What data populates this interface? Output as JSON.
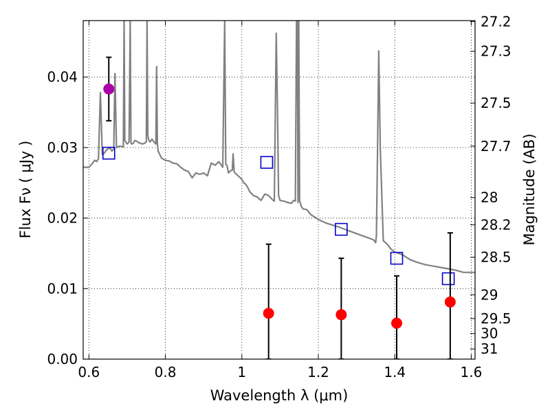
{
  "chart_data": {
    "type": "line",
    "xlabel": "Wavelength  λ (μm)",
    "ylabel": "Flux  Fν  ( μJy )",
    "y2label": "Magnitude (AB)",
    "xlim": [
      0.585,
      1.61
    ],
    "ylim": [
      0.0,
      0.048
    ],
    "grid": true,
    "x_ticks": [
      0.6,
      0.8,
      1.0,
      1.2,
      1.4,
      1.6
    ],
    "x_tick_labels": [
      "0.6",
      "0.8",
      "1",
      "1.2",
      "1.4",
      "1.6"
    ],
    "y_ticks": [
      0.0,
      0.01,
      0.02,
      0.03,
      0.04
    ],
    "y_tick_labels": [
      "0.00",
      "0.01",
      "0.02",
      "0.03",
      "0.04"
    ],
    "y2_ticks": [
      "27.2",
      "27.3",
      "27.5",
      "27.7",
      "28",
      "28.2",
      "28.5",
      "29",
      "29.5",
      "30",
      "31"
    ],
    "colors": {
      "spectrum": "#808080",
      "model_markers": "#0000cc",
      "purple_point": "#aa00aa",
      "red_points": "#ff0000",
      "errorbar": "#000000"
    },
    "series": [
      {
        "kind": "spectrum",
        "color": "#808080",
        "x": [
          0.585,
          0.6,
          0.61,
          0.615,
          0.62,
          0.625,
          0.63,
          0.635,
          0.64,
          0.645,
          0.65,
          0.655,
          0.66,
          0.665,
          0.668,
          0.672,
          0.68,
          0.69,
          0.692,
          0.694,
          0.7,
          0.705,
          0.708,
          0.71,
          0.712,
          0.716,
          0.72,
          0.725,
          0.73,
          0.74,
          0.745,
          0.75,
          0.752,
          0.754,
          0.757,
          0.76,
          0.765,
          0.77,
          0.775,
          0.777,
          0.779,
          0.781,
          0.79,
          0.8,
          0.81,
          0.82,
          0.83,
          0.84,
          0.85,
          0.86,
          0.87,
          0.88,
          0.89,
          0.9,
          0.91,
          0.92,
          0.93,
          0.94,
          0.95,
          0.955,
          0.958,
          0.961,
          0.965,
          0.97,
          0.975,
          0.977,
          0.98,
          0.99,
          1.0,
          1.005,
          1.01,
          1.015,
          1.02,
          1.03,
          1.04,
          1.05,
          1.06,
          1.07,
          1.08,
          1.085,
          1.09,
          1.093,
          1.096,
          1.1,
          1.11,
          1.12,
          1.13,
          1.135,
          1.14,
          1.143,
          1.145,
          1.147,
          1.149,
          1.151,
          1.155,
          1.16,
          1.17,
          1.18,
          1.2,
          1.22,
          1.25,
          1.28,
          1.3,
          1.33,
          1.345,
          1.35,
          1.352,
          1.355,
          1.358,
          1.362,
          1.37,
          1.38,
          1.39,
          1.4,
          1.42,
          1.44,
          1.46,
          1.48,
          1.5,
          1.52,
          1.54,
          1.56,
          1.58,
          1.6,
          1.61
        ],
        "y": [
          0.0272,
          0.0272,
          0.0278,
          0.0282,
          0.028,
          0.0284,
          0.0378,
          0.029,
          0.0292,
          0.0296,
          0.0298,
          0.03,
          0.0295,
          0.0298,
          0.0405,
          0.03,
          0.0302,
          0.0301,
          0.048,
          0.031,
          0.0305,
          0.0308,
          0.048,
          0.0307,
          0.0305,
          0.0306,
          0.031,
          0.0309,
          0.0307,
          0.0305,
          0.0306,
          0.0308,
          0.048,
          0.0317,
          0.031,
          0.0308,
          0.0312,
          0.0308,
          0.0305,
          0.0415,
          0.0306,
          0.0295,
          0.0285,
          0.0282,
          0.0281,
          0.0278,
          0.0277,
          0.0272,
          0.0268,
          0.0266,
          0.0257,
          0.0264,
          0.0262,
          0.0264,
          0.026,
          0.0278,
          0.0275,
          0.028,
          0.0272,
          0.048,
          0.0276,
          0.0275,
          0.0264,
          0.0267,
          0.0268,
          0.0291,
          0.0265,
          0.026,
          0.0255,
          0.025,
          0.0248,
          0.0244,
          0.0238,
          0.0232,
          0.023,
          0.0225,
          0.0234,
          0.0232,
          0.0226,
          0.0224,
          0.0462,
          0.036,
          0.0232,
          0.0225,
          0.0224,
          0.0222,
          0.0221,
          0.0225,
          0.0224,
          0.048,
          0.048,
          0.0222,
          0.048,
          0.0225,
          0.0217,
          0.0213,
          0.0212,
          0.0205,
          0.0198,
          0.0193,
          0.0188,
          0.0182,
          0.0178,
          0.0172,
          0.0169,
          0.0165,
          0.0175,
          0.03,
          0.0437,
          0.03,
          0.0168,
          0.0163,
          0.0156,
          0.0152,
          0.0148,
          0.0141,
          0.0137,
          0.0134,
          0.0132,
          0.013,
          0.0128,
          0.0126,
          0.0123,
          0.0123,
          0.0123
        ]
      },
      {
        "kind": "model_squares",
        "color": "#0000cc",
        "x": [
          0.652,
          1.065,
          1.26,
          1.405,
          1.54
        ],
        "y": [
          0.0292,
          0.0279,
          0.0184,
          0.0143,
          0.0114
        ]
      },
      {
        "kind": "purple_point",
        "color": "#aa00aa",
        "x": [
          0.652
        ],
        "y": [
          0.0383
        ],
        "yerr_low": [
          0.0045
        ],
        "yerr_high": [
          0.0045
        ]
      },
      {
        "kind": "red_points",
        "color": "#ff0000",
        "x": [
          1.07,
          1.26,
          1.405,
          1.545
        ],
        "y": [
          0.0065,
          0.0063,
          0.0051,
          0.0081
        ],
        "yerr_low": [
          0.0065,
          0.0063,
          0.0051,
          0.0081
        ],
        "yerr_high": [
          0.0098,
          0.008,
          0.0067,
          0.0098
        ]
      }
    ]
  }
}
